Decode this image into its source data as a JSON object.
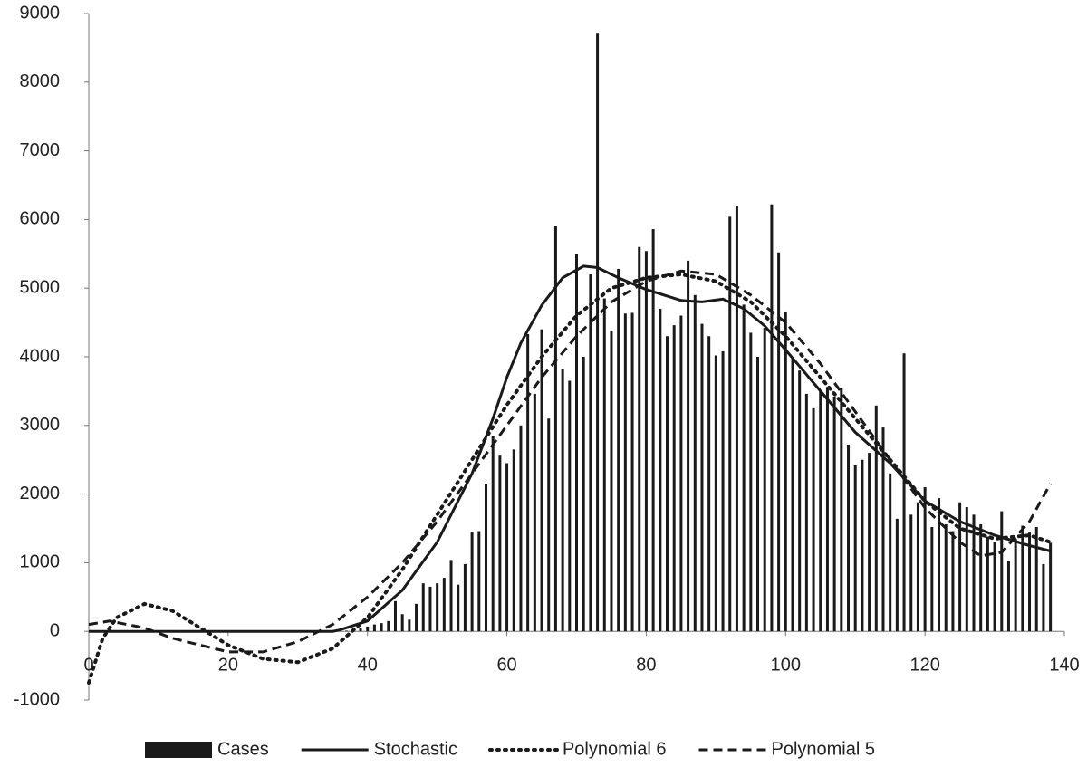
{
  "chart_data": {
    "type": "bar+line",
    "xlim": [
      0,
      140
    ],
    "xticks": [
      0,
      20,
      40,
      60,
      80,
      100,
      120,
      140
    ],
    "ylim": [
      -1000,
      9000
    ],
    "yticks": [
      -1000,
      0,
      1000,
      2000,
      3000,
      4000,
      5000,
      6000,
      7000,
      8000,
      9000
    ],
    "grid": false,
    "legend": "bottom",
    "series": [
      {
        "name": "Cases",
        "type": "bar",
        "color": "#1a1a1a",
        "x": [
          0,
          1,
          2,
          3,
          4,
          5,
          6,
          7,
          8,
          9,
          10,
          11,
          12,
          13,
          14,
          15,
          16,
          17,
          18,
          19,
          20,
          21,
          22,
          23,
          24,
          25,
          26,
          27,
          28,
          29,
          30,
          31,
          32,
          33,
          34,
          35,
          36,
          37,
          38,
          39,
          40,
          41,
          42,
          43,
          44,
          45,
          46,
          47,
          48,
          49,
          50,
          51,
          52,
          53,
          54,
          55,
          56,
          57,
          58,
          59,
          60,
          61,
          62,
          63,
          64,
          65,
          66,
          67,
          68,
          69,
          70,
          71,
          72,
          73,
          74,
          75,
          76,
          77,
          78,
          79,
          80,
          81,
          82,
          83,
          84,
          85,
          86,
          87,
          88,
          89,
          90,
          91,
          92,
          93,
          94,
          95,
          96,
          97,
          98,
          99,
          100,
          101,
          102,
          103,
          104,
          105,
          106,
          107,
          108,
          109,
          110,
          111,
          112,
          113,
          114,
          115,
          116,
          117,
          118,
          119,
          120,
          121,
          122,
          123,
          124,
          125,
          126,
          127,
          128,
          129,
          130,
          131,
          132,
          133,
          134,
          135,
          136,
          137,
          138
        ],
        "values": [
          0,
          0,
          0,
          0,
          0,
          0,
          0,
          0,
          0,
          0,
          0,
          0,
          0,
          0,
          0,
          0,
          0,
          0,
          0,
          0,
          0,
          0,
          0,
          0,
          0,
          0,
          0,
          0,
          0,
          0,
          0,
          0,
          0,
          0,
          0,
          0,
          0,
          10,
          20,
          50,
          70,
          100,
          120,
          150,
          440,
          250,
          170,
          400,
          700,
          650,
          700,
          780,
          1040,
          680,
          980,
          1440,
          1460,
          2150,
          2850,
          2560,
          2450,
          2650,
          3000,
          4330,
          3460,
          4400,
          3100,
          5900,
          3820,
          3650,
          5500,
          4000,
          5200,
          8720,
          4850,
          4370,
          5280,
          4630,
          4640,
          5600,
          5540,
          5860,
          4700,
          4300,
          4460,
          4600,
          5400,
          4900,
          4480,
          4300,
          4020,
          4080,
          6040,
          6200,
          4760,
          4350,
          4000,
          4420,
          6220,
          5520,
          4660,
          4000,
          3800,
          3460,
          3250,
          3500,
          3560,
          3420,
          3540,
          2720,
          2420,
          2500,
          2600,
          3290,
          2970,
          2300,
          1640,
          4050,
          1700,
          1880,
          2100,
          1520,
          1940,
          1560,
          1460,
          1880,
          1810,
          1700,
          1560,
          1380,
          1300,
          1750,
          1020,
          1350,
          1540,
          1450,
          1520,
          980,
          1290
        ]
      },
      {
        "name": "Stochastic",
        "type": "line",
        "dash": "solid",
        "color": "#1a1a1a",
        "x": [
          0,
          10,
          20,
          30,
          35,
          36,
          40,
          45,
          50,
          55,
          58,
          60,
          62,
          65,
          68,
          71,
          73,
          76,
          80,
          85,
          88,
          91,
          94,
          97,
          100,
          105,
          110,
          115,
          120,
          125,
          130,
          135,
          138
        ],
        "values": [
          0,
          0,
          0,
          0,
          0,
          20,
          150,
          600,
          1300,
          2300,
          3100,
          3700,
          4200,
          4750,
          5150,
          5320,
          5300,
          5150,
          4980,
          4820,
          4800,
          4840,
          4700,
          4450,
          4100,
          3500,
          2900,
          2450,
          1900,
          1600,
          1400,
          1250,
          1170
        ]
      },
      {
        "name": "Polynomial 6",
        "type": "line",
        "dash": "dotted",
        "color": "#1a1a1a",
        "x": [
          0,
          2,
          4,
          8,
          12,
          16,
          20,
          25,
          30,
          35,
          40,
          45,
          50,
          55,
          60,
          65,
          70,
          75,
          80,
          85,
          90,
          95,
          100,
          105,
          110,
          115,
          120,
          125,
          130,
          135,
          138
        ],
        "values": [
          -750,
          -100,
          200,
          400,
          300,
          50,
          -200,
          -400,
          -450,
          -250,
          200,
          900,
          1700,
          2500,
          3300,
          4000,
          4600,
          5000,
          5150,
          5200,
          5100,
          4800,
          4300,
          3700,
          3100,
          2500,
          1900,
          1500,
          1350,
          1400,
          1300
        ]
      },
      {
        "name": "Polynomial 5",
        "type": "line",
        "dash": "dashed",
        "color": "#1a1a1a",
        "x": [
          0,
          3,
          8,
          12,
          16,
          20,
          25,
          30,
          35,
          40,
          45,
          50,
          55,
          60,
          65,
          70,
          75,
          80,
          85,
          90,
          95,
          100,
          105,
          110,
          115,
          120,
          125,
          128,
          131,
          135,
          138
        ],
        "values": [
          100,
          150,
          50,
          -100,
          -200,
          -300,
          -300,
          -150,
          100,
          500,
          1000,
          1600,
          2300,
          3000,
          3700,
          4300,
          4800,
          5100,
          5250,
          5200,
          4900,
          4500,
          3900,
          3200,
          2500,
          1800,
          1300,
          1100,
          1150,
          1600,
          2150
        ]
      }
    ]
  }
}
